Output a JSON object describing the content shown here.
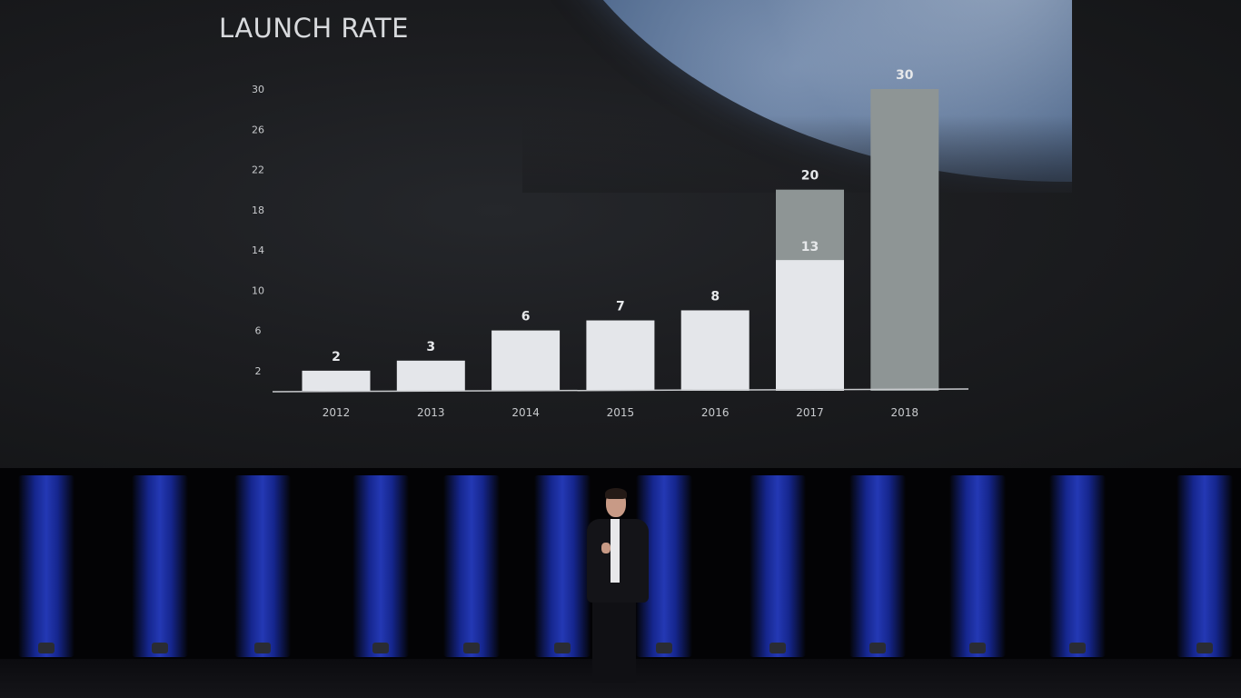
{
  "chart_data": {
    "type": "bar",
    "title": "LAUNCH RATE",
    "categories": [
      "2012",
      "2013",
      "2014",
      "2015",
      "2016",
      "2017",
      "2018"
    ],
    "values": [
      2,
      3,
      6,
      7,
      8,
      20,
      30
    ],
    "inner_values": [
      null,
      null,
      null,
      null,
      null,
      13,
      null
    ],
    "bar_colors": [
      "#e4e6ea",
      "#e4e6ea",
      "#e4e6ea",
      "#e4e6ea",
      "#e4e6ea",
      "#8e9595",
      "#8e9595"
    ],
    "inner_color": "#e4e6ea",
    "y_ticks": [
      2,
      6,
      10,
      14,
      18,
      22,
      26,
      30
    ],
    "ylim": [
      0,
      30
    ],
    "xlabel": "",
    "ylabel": "",
    "grid": false,
    "legend": "none"
  },
  "colors": {
    "screen_bg": "#1c1d20",
    "light_bar": "#e4e6ea",
    "grey_bar": "#8e9595",
    "curtain_blue": "#2c46e0"
  }
}
